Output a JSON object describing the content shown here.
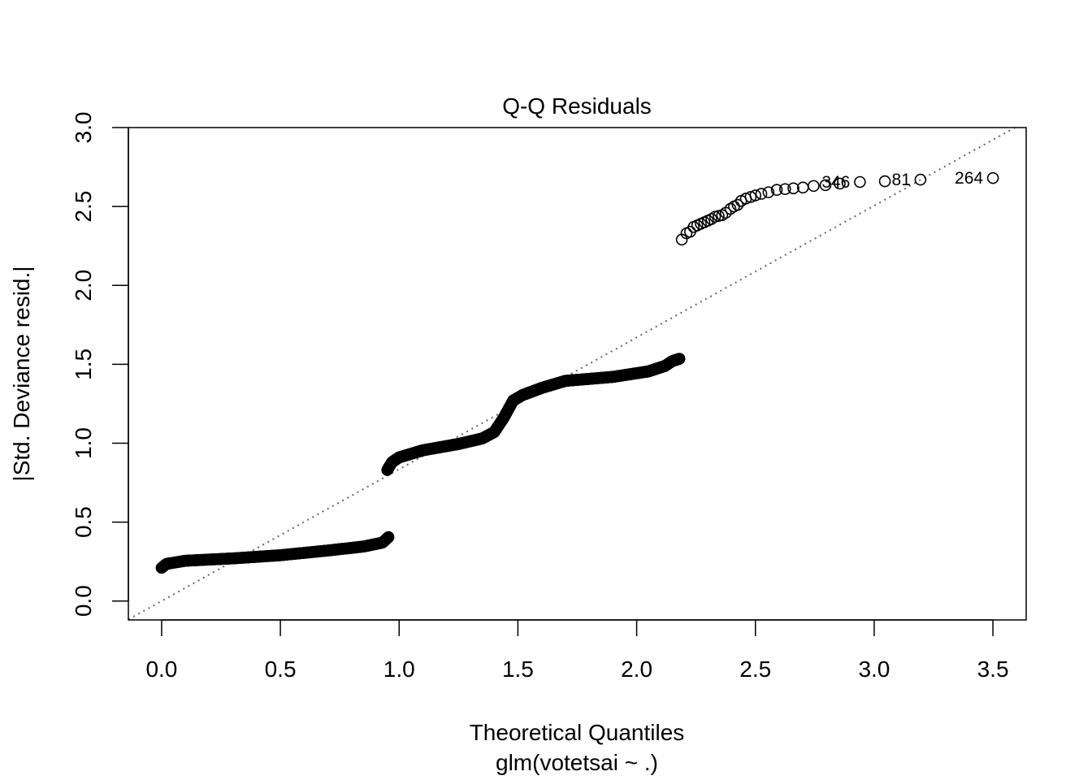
{
  "chart_data": {
    "type": "scatter",
    "title": "Q-Q Residuals",
    "xlabel": "Theoretical Quantiles",
    "subtitle": "glm(votetsai ~ .)",
    "ylabel": "|Std. Deviance resid.|",
    "xlim": [
      -0.14,
      3.64
    ],
    "ylim": [
      -0.12,
      3.0
    ],
    "grid": false,
    "x_ticks": [
      "0.0",
      "0.5",
      "1.0",
      "1.5",
      "2.0",
      "2.5",
      "3.0",
      "3.5"
    ],
    "y_ticks": [
      "0.0",
      "0.5",
      "1.0",
      "1.5",
      "2.0",
      "2.5",
      "3.0"
    ],
    "reference_line": {
      "slope": 0.835,
      "intercept": 0.0,
      "style": "dotted",
      "color": "#666666"
    },
    "point_color": "#000000",
    "segments": [
      {
        "x_start": 0.0,
        "x_end": 0.955,
        "count": 260,
        "knots": [
          [
            0.0,
            0.21
          ],
          [
            0.02,
            0.235
          ],
          [
            0.1,
            0.255
          ],
          [
            0.3,
            0.27
          ],
          [
            0.5,
            0.29
          ],
          [
            0.7,
            0.32
          ],
          [
            0.85,
            0.345
          ],
          [
            0.93,
            0.37
          ],
          [
            0.955,
            0.405
          ]
        ]
      },
      {
        "x_start": 0.95,
        "x_end": 2.18,
        "count": 560,
        "knots": [
          [
            0.95,
            0.83
          ],
          [
            0.97,
            0.88
          ],
          [
            1.0,
            0.91
          ],
          [
            1.1,
            0.955
          ],
          [
            1.25,
            0.995
          ],
          [
            1.35,
            1.03
          ],
          [
            1.4,
            1.07
          ],
          [
            1.44,
            1.16
          ],
          [
            1.48,
            1.27
          ],
          [
            1.52,
            1.305
          ],
          [
            1.6,
            1.35
          ],
          [
            1.7,
            1.395
          ],
          [
            1.9,
            1.42
          ],
          [
            2.05,
            1.455
          ],
          [
            2.12,
            1.49
          ],
          [
            2.15,
            1.52
          ],
          [
            2.18,
            1.535
          ]
        ]
      }
    ],
    "points": [
      [
        2.19,
        2.29
      ],
      [
        2.21,
        2.33
      ],
      [
        2.225,
        2.34
      ],
      [
        2.24,
        2.37
      ],
      [
        2.255,
        2.38
      ],
      [
        2.27,
        2.39
      ],
      [
        2.285,
        2.4
      ],
      [
        2.3,
        2.41
      ],
      [
        2.315,
        2.42
      ],
      [
        2.33,
        2.435
      ],
      [
        2.345,
        2.44
      ],
      [
        2.36,
        2.445
      ],
      [
        2.375,
        2.46
      ],
      [
        2.395,
        2.485
      ],
      [
        2.41,
        2.5
      ],
      [
        2.425,
        2.51
      ],
      [
        2.44,
        2.535
      ],
      [
        2.46,
        2.55
      ],
      [
        2.48,
        2.56
      ],
      [
        2.5,
        2.57
      ],
      [
        2.525,
        2.58
      ],
      [
        2.555,
        2.59
      ],
      [
        2.59,
        2.605
      ],
      [
        2.625,
        2.61
      ],
      [
        2.66,
        2.615
      ],
      [
        2.7,
        2.62
      ],
      [
        2.745,
        2.63
      ],
      [
        2.795,
        2.635
      ],
      [
        2.855,
        2.645
      ],
      [
        2.94,
        2.655
      ],
      [
        3.045,
        2.66
      ],
      [
        3.195,
        2.67
      ],
      [
        3.5,
        2.68
      ]
    ],
    "labeled_points": [
      {
        "label": "346",
        "x": 2.94,
        "y": 2.655
      },
      {
        "label": "81",
        "x": 3.195,
        "y": 2.67
      },
      {
        "label": "264",
        "x": 3.5,
        "y": 2.68
      }
    ]
  }
}
